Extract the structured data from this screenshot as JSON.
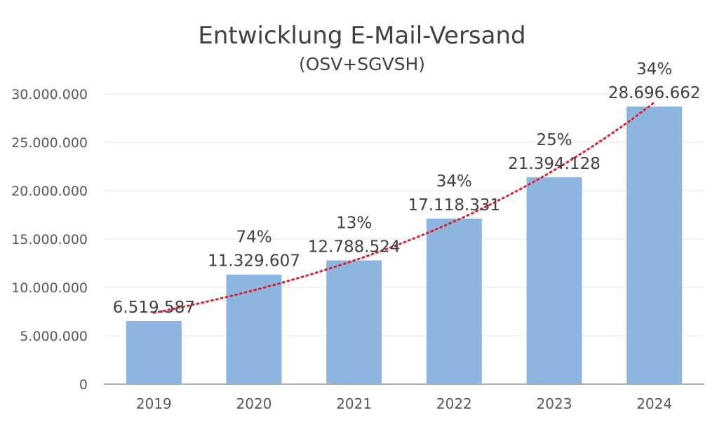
{
  "chart_data": {
    "type": "bar",
    "title": "Entwicklung E-Mail-Versand",
    "subtitle": "(OSV+SGVSH)",
    "categories": [
      "2019",
      "2020",
      "2021",
      "2022",
      "2023",
      "2024"
    ],
    "values": [
      6519587,
      11329607,
      12788524,
      17118331,
      21394128,
      28696662
    ],
    "value_labels": [
      "6.519.587",
      "11.329.607",
      "12.788.524",
      "17.118.331",
      "21.394.128",
      "28.696.662"
    ],
    "growth_labels": [
      "",
      "74%",
      "13%",
      "34%",
      "25%",
      "34%"
    ],
    "ylim": [
      0,
      30000000
    ],
    "yticks": [
      0,
      5000000,
      10000000,
      15000000,
      20000000,
      25000000,
      30000000
    ],
    "ytick_labels": [
      "0",
      "5.000.000",
      "10.000.000",
      "15.000.000",
      "20.000.000",
      "25.000.000",
      "30.000.000"
    ],
    "xlabel": "",
    "ylabel": "",
    "grid": true,
    "trendline": {
      "type": "exponential",
      "style": "dotted",
      "color": "#e0202a"
    },
    "colors": {
      "bar": "#8cb6e0",
      "grid": "#e6e6e6",
      "axis": "#b0b0b0",
      "text": "#404040"
    }
  }
}
